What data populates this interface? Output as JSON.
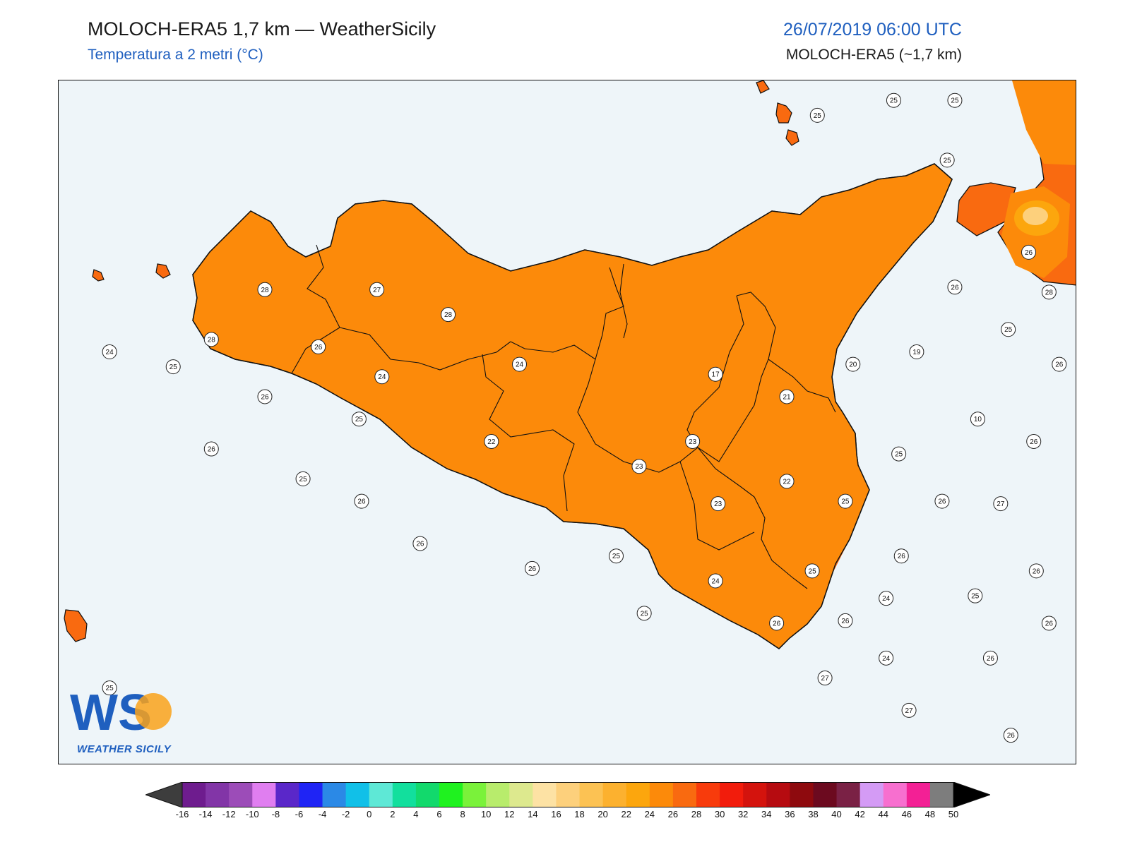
{
  "header": {
    "title": "MOLOCH-ERA5 1,7 km — WeatherSicily",
    "subtitle": "Temperatura a 2 metri (°C)",
    "datetime": "26/07/2019 06:00 UTC",
    "model": "MOLOCH-ERA5 (~1,7 km)"
  },
  "logo": {
    "text": "WS",
    "label": "WEATHER SICILY"
  },
  "colors": {
    "sea": "#eef5f9",
    "accent_blue": "#1f5fbf",
    "t20": "#fcc253",
    "t22": "#fca60d",
    "t24": "#fc8a0a",
    "t26": "#f96a10",
    "t28": "#f84a10",
    "t10": "#b9ec8c"
  },
  "map": {
    "legend": {
      "ticks": [
        "-16",
        "-14",
        "-12",
        "-10",
        "-8",
        "-6",
        "-4",
        "-2",
        "0",
        "2",
        "4",
        "6",
        "8",
        "10",
        "12",
        "14",
        "16",
        "18",
        "20",
        "22",
        "24",
        "26",
        "28",
        "30",
        "32",
        "34",
        "36",
        "38",
        "40",
        "42",
        "44",
        "46",
        "48",
        "50"
      ],
      "colors": [
        "#4a0d4f",
        "#6e1c8e",
        "#8235a7",
        "#9c4cb8",
        "#e07ef0",
        "#5a27c9",
        "#1f24f5",
        "#2b89e6",
        "#11c0e8",
        "#5ee8d6",
        "#12df9d",
        "#12d96c",
        "#1ff21f",
        "#7af23a",
        "#b8ec6c",
        "#dde98e",
        "#fde2a4",
        "#fdd07c",
        "#fcc253",
        "#fcb12f",
        "#fca60d",
        "#fc8a0a",
        "#f96a10",
        "#f83b0c",
        "#f21c0c",
        "#d4130d",
        "#b60b10",
        "#8e0a0e",
        "#6c0a1f",
        "#7a2145",
        "#d49bf5",
        "#f76fcf",
        "#f32095",
        "#7d7d7d",
        "#383838"
      ],
      "extend": "both",
      "unit": "°C"
    },
    "stations": [
      {
        "value": "25",
        "lon": 14.73,
        "lat": 38.86
      },
      {
        "value": "25",
        "lon": 15.03,
        "lat": 38.92
      },
      {
        "value": "25",
        "lon": 15.27,
        "lat": 38.92
      },
      {
        "value": "25",
        "lon": 15.24,
        "lat": 38.68
      },
      {
        "value": "26",
        "lon": 15.56,
        "lat": 38.31
      },
      {
        "value": "28",
        "lon": 12.56,
        "lat": 38.16
      },
      {
        "value": "27",
        "lon": 13.0,
        "lat": 38.16
      },
      {
        "value": "28",
        "lon": 13.28,
        "lat": 38.06
      },
      {
        "value": "26",
        "lon": 15.27,
        "lat": 38.17
      },
      {
        "value": "28",
        "lon": 15.64,
        "lat": 38.15
      },
      {
        "value": "28",
        "lon": 12.35,
        "lat": 37.96
      },
      {
        "value": "26",
        "lon": 12.77,
        "lat": 37.93
      },
      {
        "value": "24",
        "lon": 11.95,
        "lat": 37.91
      },
      {
        "value": "25",
        "lon": 12.2,
        "lat": 37.85
      },
      {
        "value": "25",
        "lon": 15.48,
        "lat": 38.0
      },
      {
        "value": "24",
        "lon": 13.56,
        "lat": 37.86
      },
      {
        "value": "19",
        "lon": 15.12,
        "lat": 37.91
      },
      {
        "value": "20",
        "lon": 14.87,
        "lat": 37.86
      },
      {
        "value": "26",
        "lon": 15.68,
        "lat": 37.86
      },
      {
        "value": "24",
        "lon": 13.02,
        "lat": 37.81
      },
      {
        "value": "17",
        "lon": 14.33,
        "lat": 37.82
      },
      {
        "value": "26",
        "lon": 12.56,
        "lat": 37.73
      },
      {
        "value": "21",
        "lon": 14.61,
        "lat": 37.73
      },
      {
        "value": "10",
        "lon": 15.36,
        "lat": 37.64
      },
      {
        "value": "25",
        "lon": 12.93,
        "lat": 37.64
      },
      {
        "value": "22",
        "lon": 13.45,
        "lat": 37.55
      },
      {
        "value": "23",
        "lon": 14.24,
        "lat": 37.55
      },
      {
        "value": "26",
        "lon": 12.35,
        "lat": 37.52
      },
      {
        "value": "26",
        "lon": 15.58,
        "lat": 37.55
      },
      {
        "value": "25",
        "lon": 15.05,
        "lat": 37.5
      },
      {
        "value": "23",
        "lon": 14.03,
        "lat": 37.45
      },
      {
        "value": "25",
        "lon": 12.71,
        "lat": 37.4
      },
      {
        "value": "22",
        "lon": 14.61,
        "lat": 37.39
      },
      {
        "value": "26",
        "lon": 12.94,
        "lat": 37.31
      },
      {
        "value": "23",
        "lon": 14.34,
        "lat": 37.3
      },
      {
        "value": "25",
        "lon": 14.84,
        "lat": 37.31
      },
      {
        "value": "26",
        "lon": 15.22,
        "lat": 37.31
      },
      {
        "value": "27",
        "lon": 15.45,
        "lat": 37.3
      },
      {
        "value": "26",
        "lon": 13.17,
        "lat": 37.14
      },
      {
        "value": "25",
        "lon": 13.94,
        "lat": 37.09
      },
      {
        "value": "26",
        "lon": 15.06,
        "lat": 37.09
      },
      {
        "value": "26",
        "lon": 13.61,
        "lat": 37.04
      },
      {
        "value": "25",
        "lon": 14.71,
        "lat": 37.03
      },
      {
        "value": "26",
        "lon": 15.59,
        "lat": 37.03
      },
      {
        "value": "24",
        "lon": 14.33,
        "lat": 36.99
      },
      {
        "value": "25",
        "lon": 15.35,
        "lat": 36.93
      },
      {
        "value": "24",
        "lon": 15.0,
        "lat": 36.92
      },
      {
        "value": "25",
        "lon": 14.05,
        "lat": 36.86
      },
      {
        "value": "26",
        "lon": 14.57,
        "lat": 36.82
      },
      {
        "value": "26",
        "lon": 14.84,
        "lat": 36.83
      },
      {
        "value": "26",
        "lon": 15.64,
        "lat": 36.82
      },
      {
        "value": "24",
        "lon": 15.0,
        "lat": 36.68
      },
      {
        "value": "26",
        "lon": 15.41,
        "lat": 36.68
      },
      {
        "value": "27",
        "lon": 14.76,
        "lat": 36.6
      },
      {
        "value": "25",
        "lon": 11.95,
        "lat": 36.56
      },
      {
        "value": "27",
        "lon": 15.09,
        "lat": 36.47
      },
      {
        "value": "26",
        "lon": 15.49,
        "lat": 36.37
      }
    ]
  }
}
